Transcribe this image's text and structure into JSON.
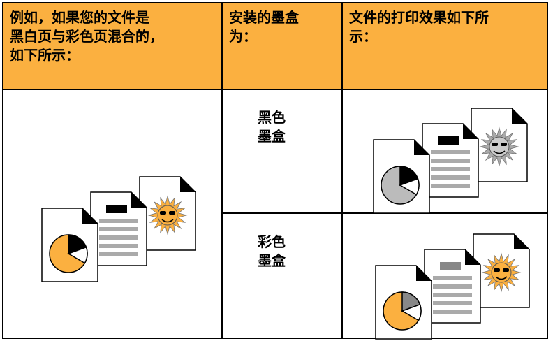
{
  "table": {
    "header": [
      [
        "例如，如果您的文件是",
        "黑白页与彩色页混合的，",
        "如下所示："
      ],
      [
        "安装的墨盒",
        "为："
      ],
      [
        "文件的打印效果如下所",
        "示："
      ]
    ],
    "rows": [
      [
        [
          "黑色",
          "墨盒"
        ]
      ],
      [
        [
          "彩色",
          "墨盒"
        ]
      ]
    ]
  }
}
